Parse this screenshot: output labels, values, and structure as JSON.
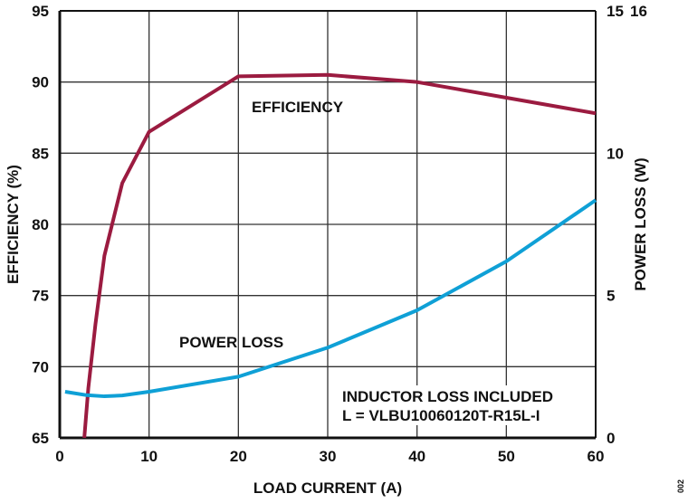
{
  "chart_data": {
    "type": "line",
    "xlabel": "LOAD CURRENT (A)",
    "ylabel": "EFFICIENCY (%)",
    "y2label": "POWER LOSS (W)",
    "xlim": [
      0,
      60
    ],
    "ylim": [
      65,
      95
    ],
    "y2lim": [
      0,
      15
    ],
    "x_ticks": [
      "0",
      "10",
      "20",
      "30",
      "40",
      "50",
      "60"
    ],
    "y_ticks": [
      "65",
      "70",
      "75",
      "80",
      "85",
      "90",
      "95"
    ],
    "y2_ticks": [
      "0",
      "5",
      "10",
      "15"
    ],
    "y2_top_overprint": "16",
    "grid": true,
    "series": [
      {
        "name": "EFFICIENCY",
        "axis": "left",
        "color": "#9b1b40",
        "x": [
          2.75,
          3.2,
          4,
          5,
          7,
          10,
          20,
          30,
          40,
          50,
          60
        ],
        "y": [
          65,
          68.5,
          73,
          77.8,
          82.9,
          86.5,
          90.4,
          90.5,
          90.0,
          88.9,
          87.8
        ]
      },
      {
        "name": "POWER LOSS",
        "axis": "right",
        "color": "#0fa0d6",
        "x": [
          0.6,
          3,
          5,
          7,
          10,
          20,
          30,
          40,
          50,
          60
        ],
        "y": [
          1.62,
          1.5,
          1.46,
          1.49,
          1.62,
          2.15,
          3.17,
          4.48,
          6.2,
          8.35
        ]
      }
    ],
    "annotation": [
      "INDUCTOR LOSS INCLUDED",
      "L = VLBU10060120T-R15L-I"
    ],
    "figure_id": "002"
  }
}
